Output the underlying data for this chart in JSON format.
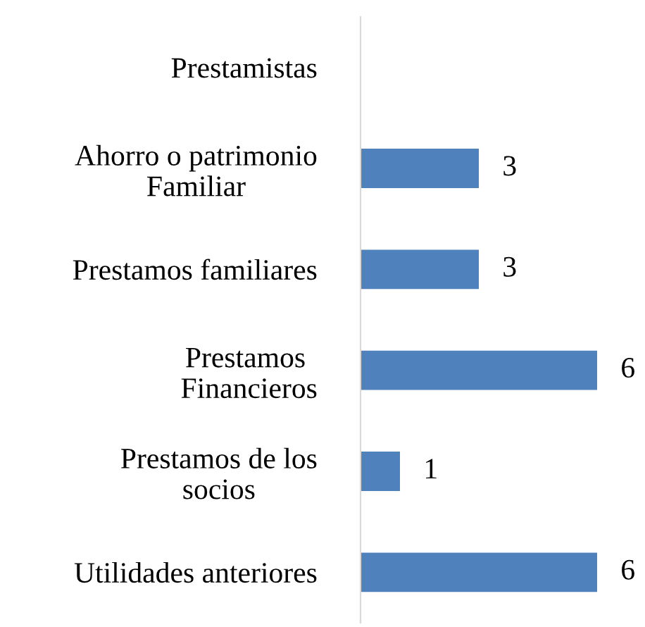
{
  "chart_data": {
    "type": "bar",
    "orientation": "horizontal",
    "categories": [
      "Prestamistas",
      "Ahorro o patrimonio\nFamiliar",
      "Prestamos familiares",
      "Prestamos \nFinancieros",
      "Prestamos de los\nsocios",
      "Utilidades anteriores"
    ],
    "values": [
      0,
      3,
      3,
      6,
      1,
      6
    ],
    "value_labels": [
      null,
      "3",
      "3",
      "6",
      "1",
      "6"
    ],
    "color": "#4f81bd",
    "grid": false,
    "legend": false
  }
}
